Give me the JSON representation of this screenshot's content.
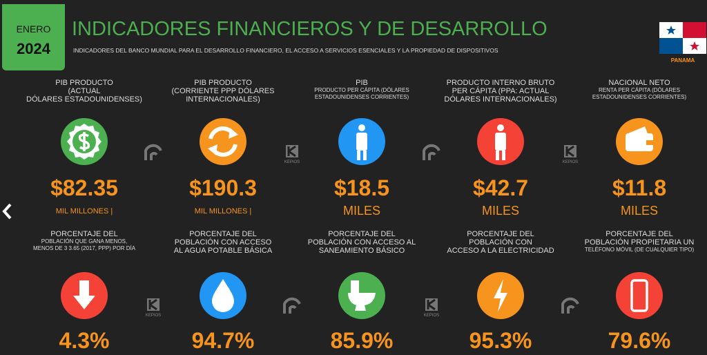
{
  "header": {
    "month": "ENERO",
    "year": "2024",
    "title": "INDICADORES FINANCIEROS Y DE DESARROLLO",
    "subtitle": "INDICADORES DEL BANCO MUNDIAL PARA EL DESARROLLO FINANCIERO, EL ACCESO A SERVICIOS ESENCIALES Y LA PROPIEDAD DE DISPOSITIVOS",
    "country": "PANAMA"
  },
  "watermark": "KEPIOS",
  "financial": [
    {
      "label": [
        "PIB PRODUCTO",
        "(ACTUAL",
        "DÓLARES ESTADOUNIDENSES)"
      ],
      "value": "$82.35",
      "unit": "MIL MILLONES |"
    },
    {
      "label": [
        "PIB PRODUCTO",
        "(CORRIENTE PPP DÓLARES",
        "INTERNACIONALES)"
      ],
      "value": "$190.3",
      "unit": "MIL MILLONES |"
    },
    {
      "label": [
        "PIB",
        "PRODUCTO PER CÁPITA (DÓLARES",
        "ESTADOUNIDENSES CORRIENTES)"
      ],
      "value": "$18.5",
      "unit": "MILES"
    },
    {
      "label": [
        "PRODUCTO INTERNO BRUTO",
        "PER CÁPITA (PPA: ACTUAL",
        "DÓLARES INTERNACIONALES)"
      ],
      "value": "$42.7",
      "unit": "MILES"
    },
    {
      "label": [
        "NACIONAL NETO",
        "RENTA PER CÁPITA (DÓLARES",
        "ESTADOUNIDENSES CORRIENTES)"
      ],
      "value": "$11.8",
      "unit": "MILES"
    }
  ],
  "development": [
    {
      "label": [
        "PORCENTAJE DEL",
        "POBLACIÓN QUE GANA MENOS,",
        "MENOS DE 3 3.65 (2017, PPP) POR DÍA"
      ],
      "value": "4.3%"
    },
    {
      "label": [
        "PORCENTAJE DEL",
        "POBLACIÓN CON ACCESO",
        "AL AGUA POTABLE BÁSICA"
      ],
      "value": "94.7%"
    },
    {
      "label": [
        "PORCENTAJE DEL",
        "POBLACIÓN CON ACCESO AL",
        "SANEAMIENTO BÁSICO"
      ],
      "value": "85.9%"
    },
    {
      "label": [
        "PORCENTAJE DEL",
        "POBLACIÓN CON",
        "ACCESO A LA ELECTRICIDAD"
      ],
      "value": "95.3%"
    },
    {
      "label": [
        "PORCENTAJE DEL",
        "POBLACIÓN PROPIETARIA UN",
        "TELÉFONO MÓVIL (DE CUALQUIER TIPO)"
      ],
      "value": "79.6%"
    }
  ]
}
